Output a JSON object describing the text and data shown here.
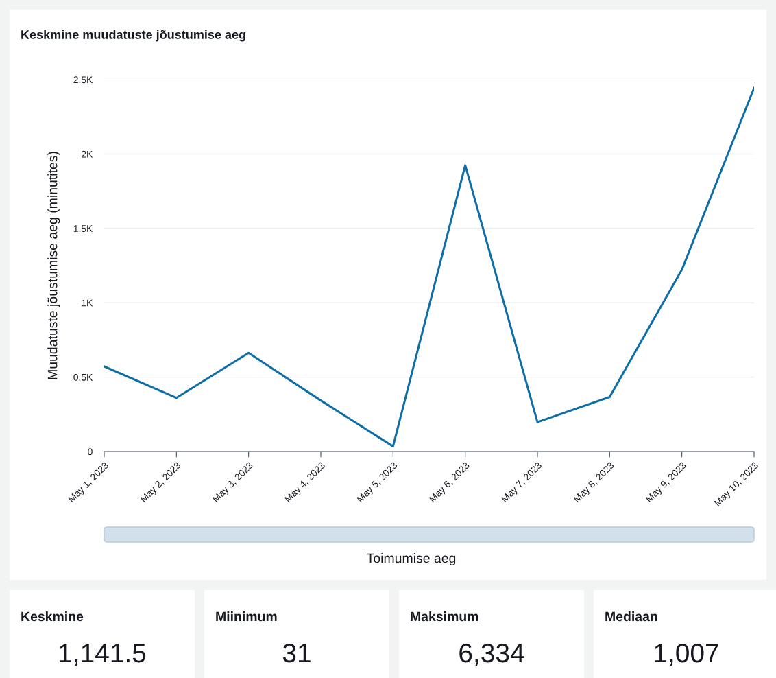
{
  "chart_data": [
    {
      "type": "line",
      "title": "Keskmine muudatuste jõustumise aeg",
      "xlabel": "Toimumise aeg",
      "ylabel": "Muudatuste jõustumise aeg (minutites)",
      "categories": [
        "May 1, 2023",
        "May 2, 2023",
        "May 3, 2023",
        "May 4, 2023",
        "May 5, 2023",
        "May 6, 2023",
        "May 7, 2023",
        "May 8, 2023",
        "May 9, 2023",
        "May 10, 2023"
      ],
      "series": [
        {
          "color": "#0f6ea6",
          "values": [
            572,
            361,
            663,
            343,
            35,
            1924,
            198,
            367,
            1222,
            2444
          ]
        }
      ],
      "ylim": [
        0,
        2500
      ],
      "yticks": [
        0,
        {
          "value": 500,
          "label": "0.5K"
        },
        {
          "value": 1000,
          "label": "1K"
        },
        {
          "value": 1500,
          "label": "1.5K"
        },
        {
          "value": 2000,
          "label": "2K"
        },
        {
          "value": 2500,
          "label": "2.5K"
        }
      ],
      "grid": "y",
      "marker": "none",
      "line_style": "solid"
    },
    {
      "type": "other",
      "categories": [
        "Keskmine",
        "Miinimum",
        "Maksimum",
        "Mediaan"
      ],
      "value_labels": [
        "1,141.5",
        "31",
        "6,334",
        "1,007"
      ]
    }
  ]
}
